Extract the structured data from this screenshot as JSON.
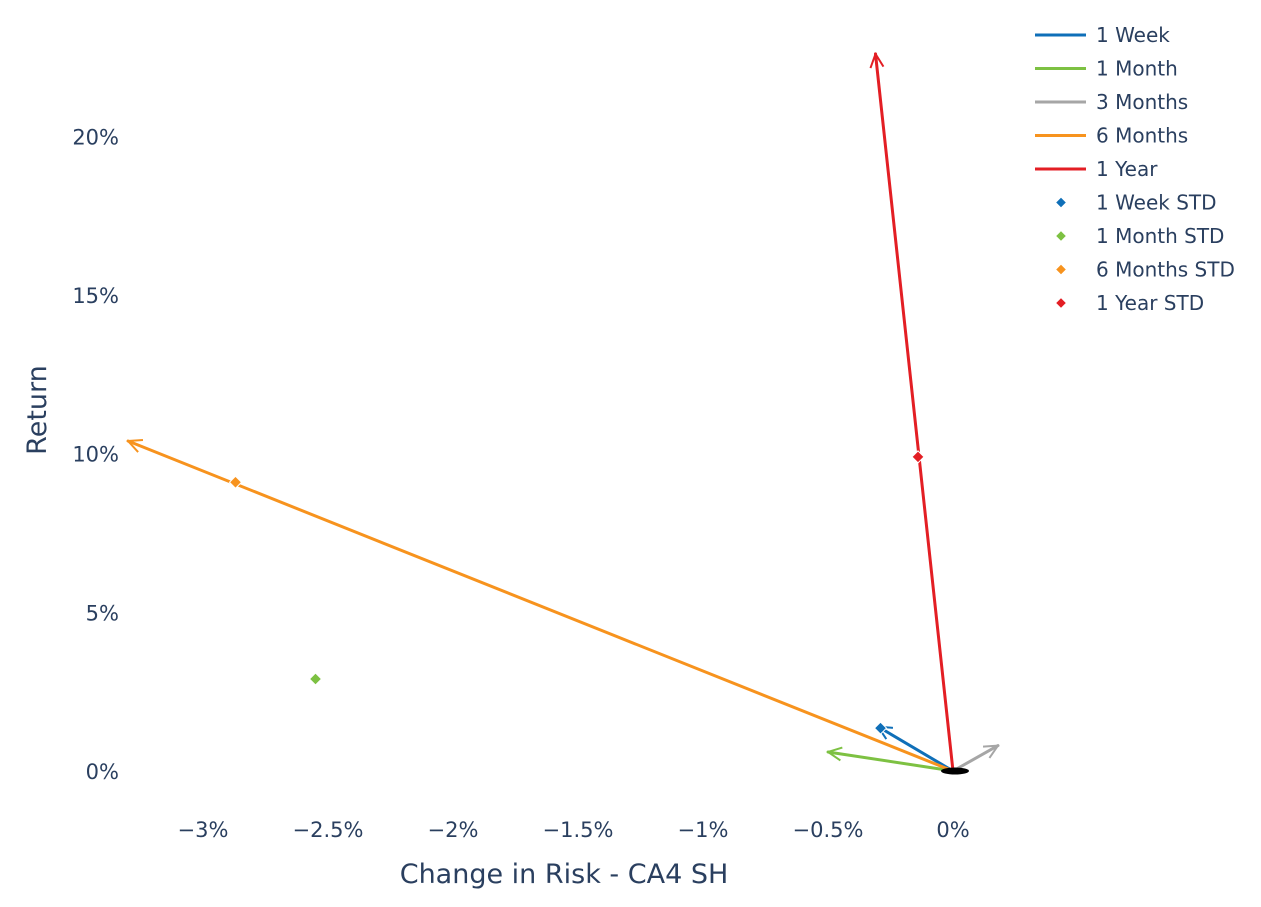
{
  "chart_data": {
    "type": "scatter",
    "xlabel": "Change in Risk - CA4 SH",
    "ylabel": "Return",
    "xlim": [
      -3.3,
      0.18
    ],
    "ylim": [
      -1.0,
      23.3
    ],
    "x_ticks": [
      {
        "value": -3,
        "label": "−3%"
      },
      {
        "value": -2.5,
        "label": "−2.5%"
      },
      {
        "value": -2,
        "label": "−2%"
      },
      {
        "value": -1.5,
        "label": "−1.5%"
      },
      {
        "value": -1,
        "label": "−1%"
      },
      {
        "value": -0.5,
        "label": "−0.5%"
      },
      {
        "value": 0,
        "label": "0%"
      }
    ],
    "y_ticks": [
      {
        "value": 0,
        "label": "0%"
      },
      {
        "value": 5,
        "label": "5%"
      },
      {
        "value": 10,
        "label": "10%"
      },
      {
        "value": 15,
        "label": "15%"
      },
      {
        "value": 20,
        "label": "20%"
      }
    ],
    "grid": false,
    "legend_position": "top-right",
    "origin": {
      "x": 0,
      "y": 0
    },
    "vectors": [
      {
        "name": "1 Week",
        "color": "#0f6fb8",
        "x": -0.3,
        "y": 1.4
      },
      {
        "name": "1 Month",
        "color": "#7dc142",
        "x": -0.5,
        "y": 0.6
      },
      {
        "name": "3 Months",
        "color": "#a6a6a6",
        "x": 0.18,
        "y": 0.8
      },
      {
        "name": "6 Months",
        "color": "#f7931e",
        "x": -3.3,
        "y": 10.4
      },
      {
        "name": "1 Year",
        "color": "#e31e24",
        "x": -0.31,
        "y": 22.6
      }
    ],
    "std_points": [
      {
        "name": "1 Week STD",
        "color": "#0f6fb8",
        "x": -0.29,
        "y": 1.35
      },
      {
        "name": "1 Month STD",
        "color": "#7dc142",
        "x": -2.55,
        "y": 2.9
      },
      {
        "name": "6 Months STD",
        "color": "#f7931e",
        "x": -2.87,
        "y": 9.1
      },
      {
        "name": "1 Year STD",
        "color": "#e31e24",
        "x": -0.14,
        "y": 9.9
      }
    ]
  }
}
